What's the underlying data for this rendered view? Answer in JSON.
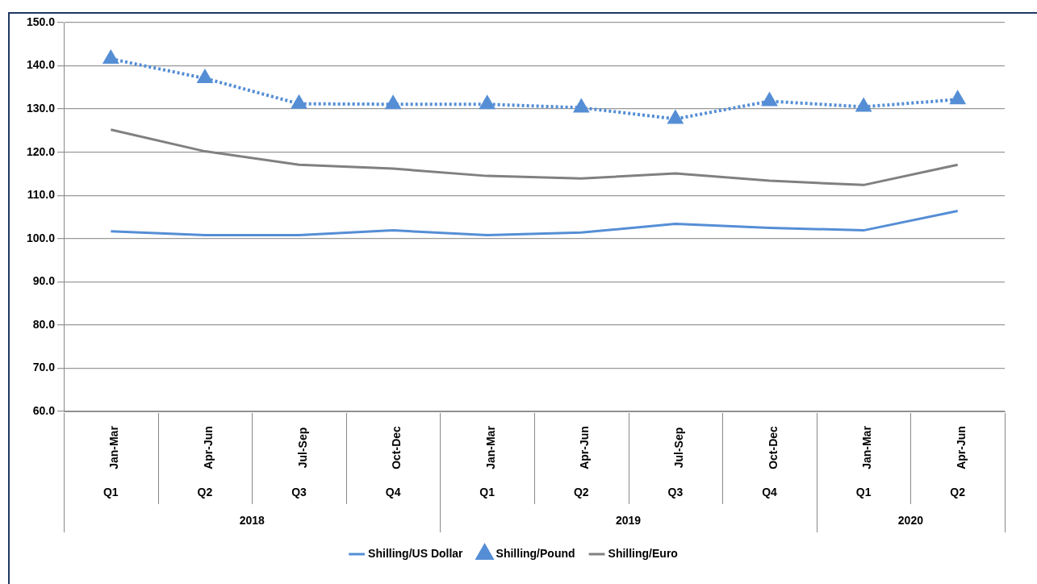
{
  "chart_data": {
    "type": "line",
    "categories": [
      "Jan-Mar",
      "Apr-Jun",
      "Jul-Sep",
      "Oct-Dec",
      "Jan-Mar",
      "Apr-Jun",
      "Jul-Sep",
      "Oct-Dec",
      "Jan-Mar",
      "Apr-Jun"
    ],
    "series": [
      {
        "name": "Shilling/US Dollar",
        "color": "#558ed5",
        "marker": "none",
        "line_style": "solid",
        "values": [
          101.7,
          100.8,
          100.8,
          101.9,
          100.8,
          101.4,
          103.4,
          102.5,
          101.9,
          106.4
        ]
      },
      {
        "name": "Shilling/Pound",
        "color": "#558ed5",
        "marker": "triangle",
        "line_style": "dotted",
        "values": [
          141.6,
          137.1,
          131.2,
          131.1,
          131.1,
          130.3,
          127.7,
          131.8,
          130.5,
          132.2
        ]
      },
      {
        "name": "Shilling/Euro",
        "color": "#808080",
        "marker": "none",
        "line_style": "solid",
        "values": [
          125.2,
          120.2,
          117.1,
          116.2,
          114.5,
          113.9,
          115.1,
          113.4,
          112.4,
          117.1
        ]
      }
    ],
    "ylim": [
      60,
      150
    ],
    "yticks": [
      {
        "value": 60,
        "label": "60.0"
      },
      {
        "value": 70,
        "label": "70.0"
      },
      {
        "value": 80,
        "label": "80.0"
      },
      {
        "value": 90,
        "label": "90.0"
      },
      {
        "value": 100,
        "label": "100.0"
      },
      {
        "value": 110,
        "label": "110.0"
      },
      {
        "value": 120,
        "label": "120.0"
      },
      {
        "value": 130,
        "label": "130.0"
      },
      {
        "value": 140,
        "label": "140.0"
      },
      {
        "value": 150,
        "label": "150.0"
      }
    ],
    "annotations": [
      "Q1",
      "Q2",
      "Q3",
      "Q4",
      "Q1",
      "Q2",
      "Q3",
      "Q4",
      "Q1",
      "Q2",
      "2018",
      "2019",
      "2020"
    ],
    "grid": "y",
    "legend": "bottom"
  }
}
